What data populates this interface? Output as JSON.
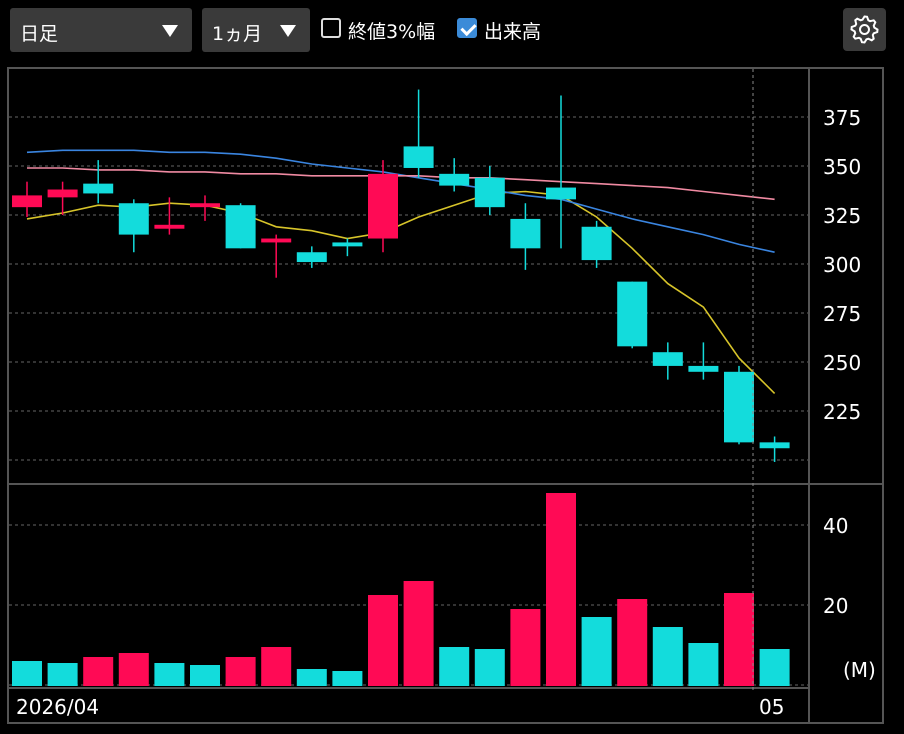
{
  "toolbar": {
    "period_select": "日足",
    "range_select": "1ヵ月",
    "close_3pct_label": "終値3%幅",
    "close_3pct_checked": false,
    "volume_label": "出来高",
    "volume_checked": true,
    "settings_icon": "gear-icon"
  },
  "chart_data": [
    {
      "type": "candlestick",
      "y_ticks": [
        "375",
        "350",
        "325",
        "300",
        "275",
        "250",
        "225"
      ],
      "ylim": [
        200,
        395
      ],
      "grid": true,
      "candles": [
        {
          "o": 329,
          "h": 342,
          "l": 324,
          "c": 335,
          "color": "red"
        },
        {
          "o": 334,
          "h": 342,
          "l": 325,
          "c": 338,
          "color": "red"
        },
        {
          "o": 341,
          "h": 353,
          "l": 331,
          "c": 336,
          "color": "cyan"
        },
        {
          "o": 331,
          "h": 333,
          "l": 306,
          "c": 315,
          "color": "cyan"
        },
        {
          "o": 318,
          "h": 334,
          "l": 315,
          "c": 320,
          "color": "red"
        },
        {
          "o": 329,
          "h": 335,
          "l": 322,
          "c": 331,
          "color": "red"
        },
        {
          "o": 330,
          "h": 331,
          "l": 308,
          "c": 308,
          "color": "cyan"
        },
        {
          "o": 311,
          "h": 315,
          "l": 293,
          "c": 313,
          "color": "red"
        },
        {
          "o": 306,
          "h": 309,
          "l": 298,
          "c": 301,
          "color": "cyan"
        },
        {
          "o": 311,
          "h": 313,
          "l": 304,
          "c": 309,
          "color": "cyan"
        },
        {
          "o": 313,
          "h": 353,
          "l": 306,
          "c": 346,
          "color": "red"
        },
        {
          "o": 360,
          "h": 389,
          "l": 344,
          "c": 349,
          "color": "cyan"
        },
        {
          "o": 346,
          "h": 354,
          "l": 337,
          "c": 340,
          "color": "cyan"
        },
        {
          "o": 344,
          "h": 350,
          "l": 325,
          "c": 329,
          "color": "cyan"
        },
        {
          "o": 323,
          "h": 331,
          "l": 297,
          "c": 308,
          "color": "cyan"
        },
        {
          "o": 339,
          "h": 386,
          "l": 308,
          "c": 333,
          "color": "cyan"
        },
        {
          "o": 319,
          "h": 322,
          "l": 298,
          "c": 302,
          "color": "cyan"
        },
        {
          "o": 291,
          "h": 291,
          "l": 257,
          "c": 258,
          "color": "cyan"
        },
        {
          "o": 255,
          "h": 260,
          "l": 241,
          "c": 248,
          "color": "cyan"
        },
        {
          "o": 248,
          "h": 260,
          "l": 241,
          "c": 245,
          "color": "cyan"
        },
        {
          "o": 245,
          "h": 248,
          "l": 208,
          "c": 209,
          "color": "cyan"
        },
        {
          "o": 209,
          "h": 212,
          "l": 199,
          "c": 206,
          "color": "cyan"
        }
      ],
      "series": [
        {
          "color": "#d7c42a",
          "values": [
            323,
            326,
            330,
            329,
            331,
            330,
            326,
            319,
            317,
            313,
            316,
            324,
            330,
            336,
            337,
            335,
            324,
            308,
            290,
            278,
            252,
            234
          ]
        },
        {
          "color": "#3a85e0",
          "values": [
            357,
            358,
            358,
            358,
            357,
            357,
            356,
            354,
            351,
            349,
            347,
            344,
            341,
            338,
            335,
            333,
            328,
            323,
            319,
            315,
            310,
            306
          ]
        },
        {
          "color": "#f08aa2",
          "values": [
            349,
            349,
            348,
            348,
            347,
            347,
            346,
            346,
            345,
            345,
            345,
            345,
            344,
            344,
            343,
            342,
            341,
            340,
            339,
            337,
            335,
            333
          ]
        }
      ]
    },
    {
      "type": "bar",
      "unit": "(M)",
      "y_ticks": [
        "40",
        "20"
      ],
      "ylim": [
        0,
        48
      ],
      "grid": true,
      "x_labels": [
        "2026/04",
        "05"
      ],
      "values": [
        6,
        5.5,
        7,
        8,
        5.5,
        5,
        7,
        9.5,
        4,
        3.5,
        22.5,
        26,
        9.5,
        9,
        19,
        48,
        17,
        21.5,
        14.5,
        10.5,
        23,
        9
      ],
      "colors": [
        "cyan",
        "cyan",
        "red",
        "red",
        "cyan",
        "cyan",
        "red",
        "red",
        "cyan",
        "cyan",
        "red",
        "red",
        "cyan",
        "cyan",
        "red",
        "red",
        "cyan",
        "red",
        "cyan",
        "cyan",
        "red",
        "cyan"
      ]
    }
  ]
}
